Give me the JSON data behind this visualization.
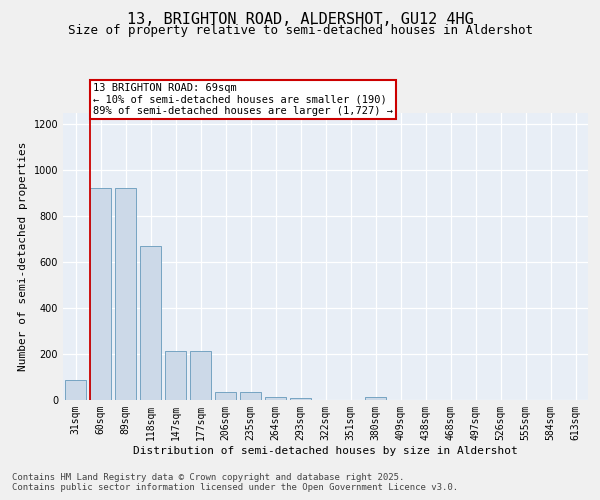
{
  "title1": "13, BRIGHTON ROAD, ALDERSHOT, GU12 4HG",
  "title2": "Size of property relative to semi-detached houses in Aldershot",
  "xlabel": "Distribution of semi-detached houses by size in Aldershot",
  "ylabel": "Number of semi-detached properties",
  "categories": [
    "31sqm",
    "60sqm",
    "89sqm",
    "118sqm",
    "147sqm",
    "177sqm",
    "206sqm",
    "235sqm",
    "264sqm",
    "293sqm",
    "322sqm",
    "351sqm",
    "380sqm",
    "409sqm",
    "438sqm",
    "468sqm",
    "497sqm",
    "526sqm",
    "555sqm",
    "584sqm",
    "613sqm"
  ],
  "values": [
    85,
    920,
    920,
    670,
    215,
    215,
    35,
    35,
    15,
    10,
    0,
    0,
    15,
    0,
    0,
    0,
    0,
    0,
    0,
    0,
    0
  ],
  "bar_color": "#ccd9e8",
  "bar_edge_color": "#6699bb",
  "red_line_x": 0.575,
  "annotation_text": "13 BRIGHTON ROAD: 69sqm\n← 10% of semi-detached houses are smaller (190)\n89% of semi-detached houses are larger (1,727) →",
  "annotation_box_facecolor": "#ffffff",
  "annotation_box_edgecolor": "#cc0000",
  "ylim_max": 1250,
  "yticks": [
    0,
    200,
    400,
    600,
    800,
    1000,
    1200
  ],
  "background_color": "#e8eef6",
  "grid_color": "#ffffff",
  "footer_text": "Contains HM Land Registry data © Crown copyright and database right 2025.\nContains public sector information licensed under the Open Government Licence v3.0.",
  "title1_fontsize": 11,
  "title2_fontsize": 9,
  "ylabel_fontsize": 8,
  "xlabel_fontsize": 8,
  "tick_fontsize": 7,
  "annotation_fontsize": 7.5,
  "footer_fontsize": 6.5
}
